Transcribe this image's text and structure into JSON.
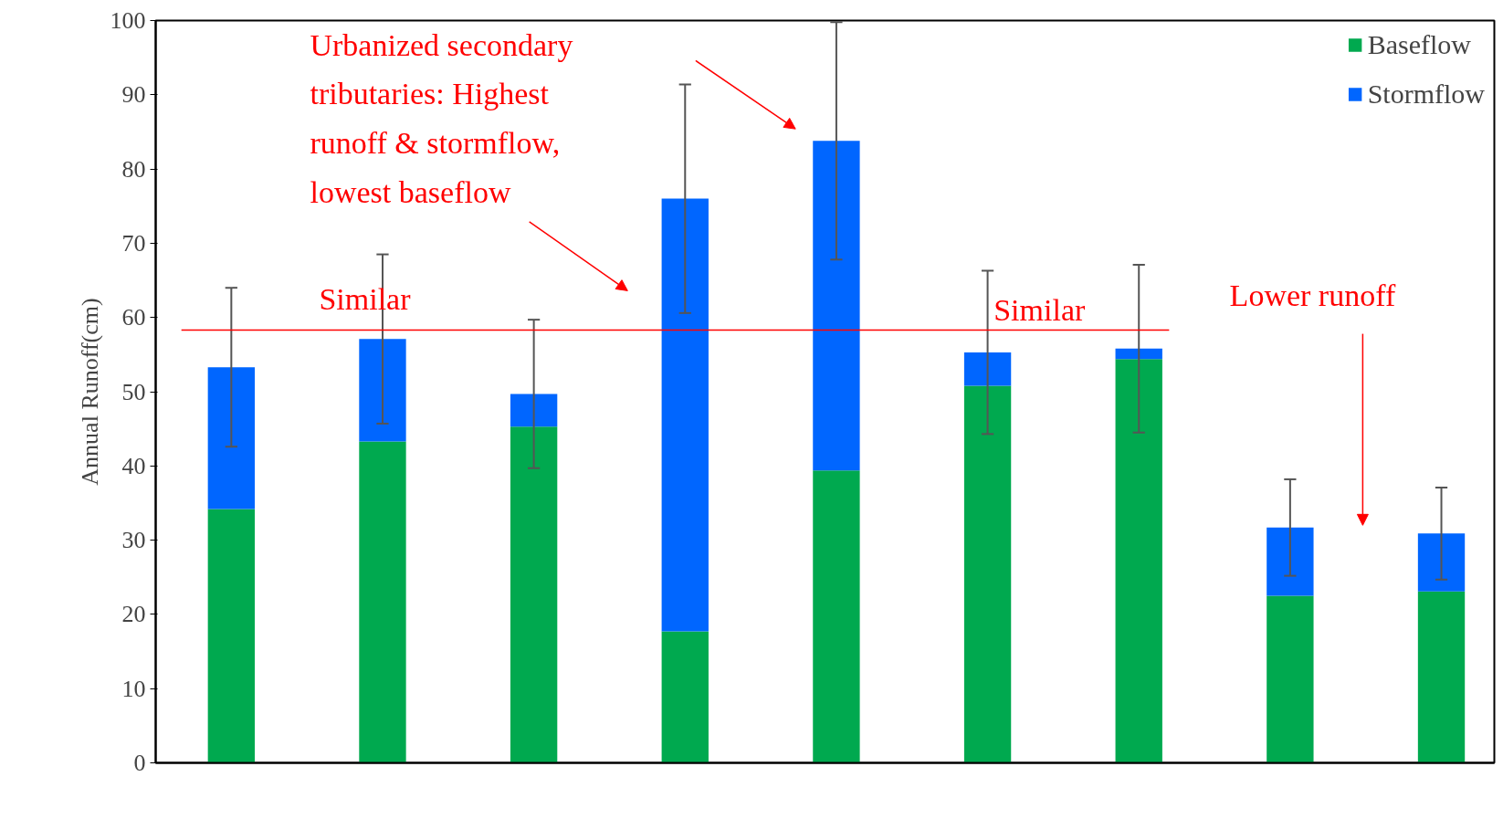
{
  "chart_data": {
    "type": "bar",
    "stacked": true,
    "ylabel": "Annual Runoff(cm)",
    "categories": [
      null,
      null,
      null,
      null,
      null,
      null,
      null,
      null,
      null
    ],
    "series": [
      {
        "name": "Baseflow",
        "color": "#00a94f",
        "values": [
          34.2,
          43.3,
          45.3,
          17.7,
          39.4,
          50.8,
          54.4,
          22.5,
          23.1
        ]
      },
      {
        "name": "Stormflow",
        "color": "#0066ff",
        "values": [
          19.1,
          13.8,
          4.4,
          58.3,
          44.4,
          4.5,
          1.4,
          9.2,
          7.8
        ],
        "errors": [
          10.7,
          11.4,
          10,
          15.4,
          16,
          11,
          11.3,
          6.5,
          6.2
        ]
      }
    ],
    "ylim": [
      0,
      100
    ],
    "yticks": [
      0,
      10,
      20,
      30,
      40,
      50,
      60,
      70,
      80,
      90,
      100
    ],
    "grid": false,
    "legend": "top right",
    "ref_lines": [
      {
        "axis": "y",
        "value": 58.3,
        "label": null,
        "color": "#ff0000"
      }
    ],
    "annotations": [
      "Urbanized secondary\ntributaries: Highest\nrunoff & stormflow,\nlowest baseflow",
      "Similar",
      "Similar",
      "Lower runoff"
    ]
  }
}
